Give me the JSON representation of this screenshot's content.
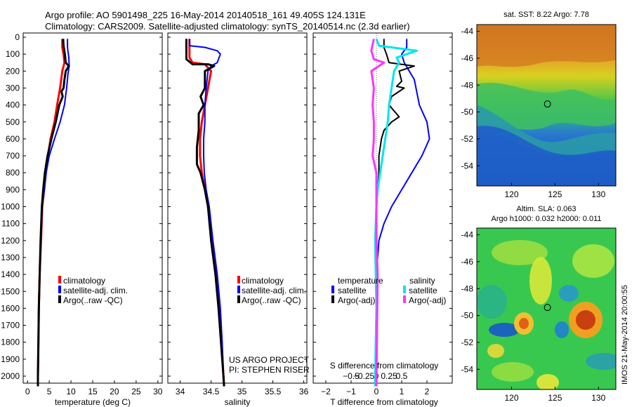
{
  "header": {
    "title_line1": "Argo profile: AO 5901498_225 16-May-2014 20140518_161 49.405S 124.131E",
    "title_line2": "Climatology: CARS2009. Satellite-adjusted climatology: synTS_20140514.nc (2.3d earlier)"
  },
  "colors": {
    "climatology": "#ff0000",
    "satellite": "#0000ff",
    "argo": "#000000",
    "sal_satellite": "#00e5ee",
    "sal_argo": "#ff33ff"
  },
  "chart_data": [
    {
      "type": "line",
      "name": "temperature",
      "xlabel": "temperature (deg C)",
      "ylabel": "",
      "xlim": [
        -1,
        31
      ],
      "ylim": [
        2100,
        0
      ],
      "xticks": [
        0,
        5,
        10,
        15,
        20,
        25,
        30
      ],
      "xtick_labels": [
        "0",
        "5",
        "10",
        "15",
        "20",
        "25",
        "30"
      ],
      "yticks": [
        0,
        100,
        200,
        300,
        400,
        500,
        600,
        700,
        800,
        900,
        1000,
        1100,
        1200,
        1300,
        1400,
        1500,
        1600,
        1700,
        1800,
        1900,
        2000
      ],
      "ytick_labels": [
        "0",
        "100",
        "200",
        "300",
        "400",
        "500",
        "600",
        "700",
        "800",
        "900",
        "1000",
        "1100",
        "1200",
        "1300",
        "1400",
        "1500",
        "1600",
        "1700",
        "1800",
        "1900",
        "2000"
      ],
      "legend": [
        "climatology",
        "satellite-adj. clim.",
        "Argo(..raw -QC)"
      ],
      "legend_position": "bottom-center",
      "series": [
        {
          "name": "climatology",
          "color": "#ff0000",
          "width": 3,
          "points": [
            [
              8.0,
              10
            ],
            [
              8.0,
              60
            ],
            [
              8.3,
              100
            ],
            [
              8.5,
              150
            ],
            [
              8.0,
              200
            ],
            [
              7.5,
              300
            ],
            [
              6.8,
              400
            ],
            [
              6.2,
              500
            ],
            [
              5.3,
              600
            ],
            [
              4.7,
              700
            ],
            [
              4.2,
              800
            ],
            [
              3.8,
              900
            ],
            [
              3.4,
              1000
            ],
            [
              3.1,
              1200
            ],
            [
              2.8,
              1400
            ],
            [
              2.6,
              1600
            ],
            [
              2.5,
              1800
            ],
            [
              2.4,
              2000
            ],
            [
              2.4,
              2060
            ]
          ]
        },
        {
          "name": "satellite-adj. clim.",
          "color": "#0000ff",
          "width": 2,
          "points": [
            [
              9.2,
              10
            ],
            [
              9.2,
              60
            ],
            [
              9.5,
              120
            ],
            [
              9.6,
              170
            ],
            [
              9.3,
              220
            ],
            [
              9.0,
              300
            ],
            [
              8.5,
              400
            ],
            [
              7.5,
              500
            ],
            [
              6.2,
              600
            ],
            [
              5.0,
              700
            ],
            [
              4.3,
              800
            ],
            [
              3.9,
              900
            ],
            [
              3.4,
              1000
            ],
            [
              3.1,
              1200
            ],
            [
              2.8,
              1400
            ],
            [
              2.6,
              1600
            ],
            [
              2.5,
              1800
            ],
            [
              2.4,
              2000
            ],
            [
              2.4,
              2060
            ]
          ]
        },
        {
          "name": "Argo(..raw -QC)",
          "color": "#000000",
          "width": 3,
          "points": [
            [
              8.2,
              10
            ],
            [
              8.3,
              50
            ],
            [
              8.6,
              100
            ],
            [
              8.8,
              150
            ],
            [
              9.5,
              170
            ],
            [
              8.8,
              200
            ],
            [
              8.5,
              250
            ],
            [
              8.3,
              300
            ],
            [
              7.8,
              320
            ],
            [
              8.1,
              350
            ],
            [
              7.3,
              400
            ],
            [
              6.5,
              500
            ],
            [
              5.5,
              600
            ],
            [
              4.6,
              700
            ],
            [
              4.0,
              800
            ],
            [
              3.6,
              900
            ],
            [
              3.3,
              1000
            ],
            [
              3.0,
              1200
            ],
            [
              2.8,
              1400
            ],
            [
              2.6,
              1600
            ],
            [
              2.5,
              1800
            ],
            [
              2.4,
              2000
            ],
            [
              2.4,
              2060
            ]
          ]
        }
      ]
    },
    {
      "type": "line",
      "name": "salinity",
      "xlabel": "salinity",
      "ylabel": "",
      "xlim": [
        33.8,
        36.05
      ],
      "ylim": [
        2100,
        0
      ],
      "xticks": [
        34,
        34.5,
        35,
        35.5,
        36
      ],
      "xtick_labels": [
        "34",
        "34.5",
        "35",
        "35.5",
        "36"
      ],
      "legend": [
        "climatology",
        "satellite-adj. clim.",
        "Argo(..raw -QC)"
      ],
      "legend_position": "bottom-right",
      "annotation_line1": "US ARGO PROJECT",
      "annotation_line2": "PI: STEPHEN RISER",
      "series": [
        {
          "name": "climatology",
          "color": "#ff0000",
          "width": 3,
          "points": [
            [
              34.15,
              10
            ],
            [
              34.15,
              120
            ],
            [
              34.2,
              150
            ],
            [
              34.4,
              160
            ],
            [
              34.5,
              200
            ],
            [
              34.45,
              300
            ],
            [
              34.4,
              400
            ],
            [
              34.35,
              500
            ],
            [
              34.32,
              600
            ],
            [
              34.32,
              700
            ],
            [
              34.35,
              800
            ],
            [
              34.4,
              900
            ],
            [
              34.45,
              1000
            ],
            [
              34.52,
              1200
            ],
            [
              34.58,
              1400
            ],
            [
              34.63,
              1600
            ],
            [
              34.67,
              1800
            ],
            [
              34.7,
              2000
            ],
            [
              34.71,
              2060
            ]
          ]
        },
        {
          "name": "satellite-adj. clim.",
          "color": "#0000ff",
          "width": 2,
          "points": [
            [
              34.15,
              10
            ],
            [
              34.15,
              50
            ],
            [
              34.4,
              60
            ],
            [
              34.6,
              80
            ],
            [
              34.65,
              100
            ],
            [
              34.6,
              150
            ],
            [
              34.5,
              170
            ],
            [
              34.45,
              200
            ],
            [
              34.42,
              300
            ],
            [
              34.4,
              400
            ],
            [
              34.4,
              500
            ],
            [
              34.38,
              600
            ],
            [
              34.38,
              700
            ],
            [
              34.39,
              800
            ],
            [
              34.42,
              900
            ],
            [
              34.47,
              1000
            ],
            [
              34.53,
              1200
            ],
            [
              34.6,
              1400
            ],
            [
              34.65,
              1600
            ],
            [
              34.68,
              1800
            ],
            [
              34.7,
              2000
            ],
            [
              34.71,
              2060
            ]
          ]
        },
        {
          "name": "Argo(..raw -QC)",
          "color": "#000000",
          "width": 3,
          "points": [
            [
              34.1,
              10
            ],
            [
              34.1,
              130
            ],
            [
              34.2,
              160
            ],
            [
              34.45,
              160
            ],
            [
              34.55,
              170
            ],
            [
              34.4,
              200
            ],
            [
              34.4,
              300
            ],
            [
              34.33,
              350
            ],
            [
              34.38,
              400
            ],
            [
              34.3,
              450
            ],
            [
              34.3,
              550
            ],
            [
              34.27,
              650
            ],
            [
              34.27,
              750
            ],
            [
              34.33,
              800
            ],
            [
              34.4,
              900
            ],
            [
              34.45,
              1000
            ],
            [
              34.5,
              1200
            ],
            [
              34.57,
              1400
            ],
            [
              34.62,
              1600
            ],
            [
              34.66,
              1800
            ],
            [
              34.7,
              2000
            ],
            [
              34.71,
              2060
            ]
          ]
        }
      ]
    },
    {
      "type": "line",
      "name": "differences",
      "xlabel": "T difference from climatology",
      "title_lower": "S difference from climatology",
      "xlim": [
        -2.5,
        3.0
      ],
      "ylim": [
        2100,
        0
      ],
      "xticks": [
        -2,
        -1,
        0,
        1,
        2
      ],
      "xtick_labels": [
        "−2",
        "−1",
        "0",
        "1",
        "2"
      ],
      "sticks": [
        -1.0,
        -0.5,
        0,
        0.5,
        1.0
      ],
      "stick_labels": [
        "−0.5",
        "−0.25",
        "0",
        "0.25",
        "0.5"
      ],
      "legend_temperature_title": "temperature",
      "legend_salinity_title": "salinity",
      "legend": [
        "satellite",
        "Argo(-adj)",
        "satellite",
        "Argo(-adj)"
      ],
      "series": [
        {
          "name": "T satellite",
          "color": "#0000ff",
          "width": 2,
          "points": [
            [
              1.2,
              10
            ],
            [
              1.2,
              60
            ],
            [
              1.0,
              100
            ],
            [
              1.1,
              150
            ],
            [
              1.5,
              250
            ],
            [
              1.7,
              400
            ],
            [
              2.0,
              500
            ],
            [
              2.1,
              600
            ],
            [
              1.8,
              700
            ],
            [
              1.4,
              800
            ],
            [
              1.0,
              900
            ],
            [
              0.6,
              1000
            ],
            [
              0.3,
              1100
            ],
            [
              0.1,
              1200
            ],
            [
              0.0,
              1400
            ],
            [
              0.0,
              2060
            ]
          ]
        },
        {
          "name": "T Argo(-adj)",
          "color": "#000000",
          "width": 2,
          "points": [
            [
              0.3,
              10
            ],
            [
              0.3,
              60
            ],
            [
              0.4,
              100
            ],
            [
              0.5,
              150
            ],
            [
              1.5,
              170
            ],
            [
              0.9,
              200
            ],
            [
              1.0,
              260
            ],
            [
              0.8,
              290
            ],
            [
              1.1,
              300
            ],
            [
              0.6,
              350
            ],
            [
              0.5,
              400
            ],
            [
              0.9,
              470
            ],
            [
              0.6,
              500
            ],
            [
              0.3,
              550
            ],
            [
              0.2,
              600
            ],
            [
              0.1,
              700
            ],
            [
              0.1,
              800
            ],
            [
              0.0,
              1000
            ],
            [
              0.0,
              1400
            ],
            [
              0.0,
              2060
            ]
          ]
        },
        {
          "name": "S satellite",
          "color": "#00e5ee",
          "width": 3,
          "points": [
            [
              0.0,
              10
            ],
            [
              0.1,
              50
            ],
            [
              1.6,
              80
            ],
            [
              0.8,
              120
            ],
            [
              0.9,
              150
            ],
            [
              0.7,
              200
            ],
            [
              0.6,
              300
            ],
            [
              0.5,
              400
            ],
            [
              0.45,
              500
            ],
            [
              0.35,
              600
            ],
            [
              0.25,
              700
            ],
            [
              0.15,
              800
            ],
            [
              0.05,
              900
            ],
            [
              0.0,
              1000
            ],
            [
              -0.05,
              1200
            ],
            [
              0.0,
              1600
            ],
            [
              -0.05,
              2000
            ],
            [
              -0.05,
              2060
            ]
          ]
        },
        {
          "name": "S Argo(-adj)",
          "color": "#ff33ff",
          "width": 3,
          "points": [
            [
              -0.1,
              10
            ],
            [
              -0.2,
              80
            ],
            [
              -0.1,
              130
            ],
            [
              0.3,
              150
            ],
            [
              -0.2,
              200
            ],
            [
              -0.1,
              300
            ],
            [
              -0.15,
              400
            ],
            [
              -0.1,
              500
            ],
            [
              -0.1,
              600
            ],
            [
              -0.15,
              700
            ],
            [
              0.0,
              800
            ],
            [
              0.0,
              1000
            ],
            [
              0.0,
              1200
            ],
            [
              0.05,
              1400
            ],
            [
              0.0,
              2060
            ]
          ]
        }
      ]
    },
    {
      "type": "heatmap",
      "name": "sat-sst-map",
      "title": "sat. SST: 8.22 Argo: 7.78",
      "xlim": [
        116,
        132
      ],
      "ylim": [
        -55.5,
        -43.5
      ],
      "xticks": [
        120,
        125,
        130
      ],
      "xtick_labels": [
        "120",
        "125",
        "130"
      ],
      "yticks": [
        -44,
        -46,
        -48,
        -50,
        -52,
        -54
      ],
      "ytick_labels": [
        "-44",
        "-46",
        "-48",
        "-50",
        "-52",
        "-54"
      ],
      "marker": [
        124.131,
        -49.405
      ]
    },
    {
      "type": "heatmap",
      "name": "sla-map",
      "title_line1": "Altim. SLA: 0.063",
      "title_line2": "Argo h1000: 0.032 h2000: 0.011",
      "xlim": [
        116,
        132
      ],
      "ylim": [
        -55.5,
        -43.5
      ],
      "xticks": [
        120,
        125,
        130
      ],
      "xtick_labels": [
        "120",
        "125",
        "130"
      ],
      "yticks": [
        -44,
        -46,
        -48,
        -50,
        -52,
        -54
      ],
      "ytick_labels": [
        "-44",
        "-46",
        "-48",
        "-50",
        "-52",
        "-54"
      ],
      "marker": [
        124.131,
        -49.405
      ]
    }
  ],
  "footer_stamp": "IMOS 21-May-2014 20:00:55"
}
